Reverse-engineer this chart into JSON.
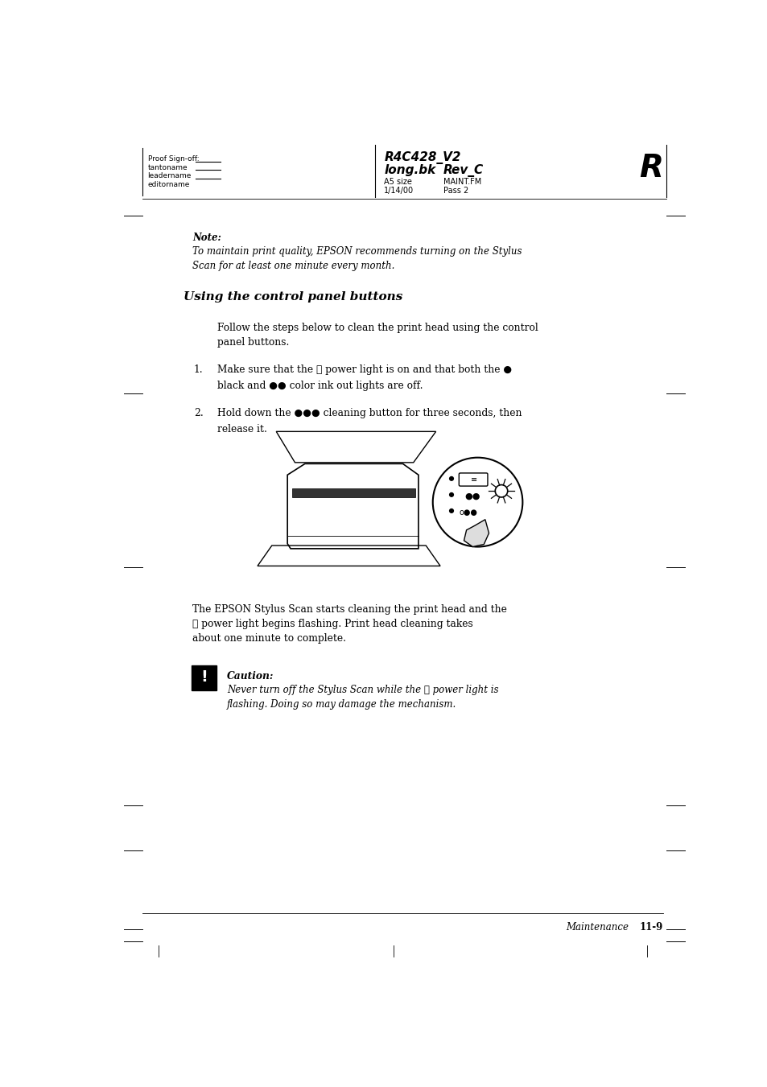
{
  "page_width": 9.54,
  "page_height": 13.51,
  "bg_color": "#ffffff",
  "header": {
    "left_col1": "Proof Sign-off:",
    "left_col2": "tantoname",
    "left_col3": "leadername",
    "left_col4": "editorname",
    "center_line1": "R4C428_V2",
    "center_line2_left": "long.bk",
    "center_line2_right": "Rev_C",
    "center_line3_left": "A5 size",
    "center_line3_right": "MAINT.FM",
    "center_line4_left": "1/14/00",
    "center_line4_right": "Pass 2",
    "right_letter": "R"
  },
  "note_label": "Note:",
  "note_text": "To maintain print quality, EPSON recommends turning on the Stylus\nScan for at least one minute every month.",
  "section_title": "Using the control panel buttons",
  "intro_text": "Follow the steps below to clean the print head using the control\npanel buttons.",
  "step1_line1": "Make sure that the ⓘ power light is on and that both the ●",
  "step1_line2": "black and ●● color ink out lights are off.",
  "step2_line1": "Hold down the ●●● cleaning button for three seconds, then",
  "step2_line2": "release it.",
  "body_text": "The EPSON Stylus Scan starts cleaning the print head and the\nⓘ power light begins flashing. Print head cleaning takes\nabout one minute to complete.",
  "caution_label": "Caution:",
  "caution_text": "Never turn off the Stylus Scan while the ⓘ power light is\nflashing. Doing so may damage the mechanism.",
  "footer_text": "Maintenance",
  "footer_page": "11-9",
  "line_color": "#000000",
  "text_color": "#000000"
}
